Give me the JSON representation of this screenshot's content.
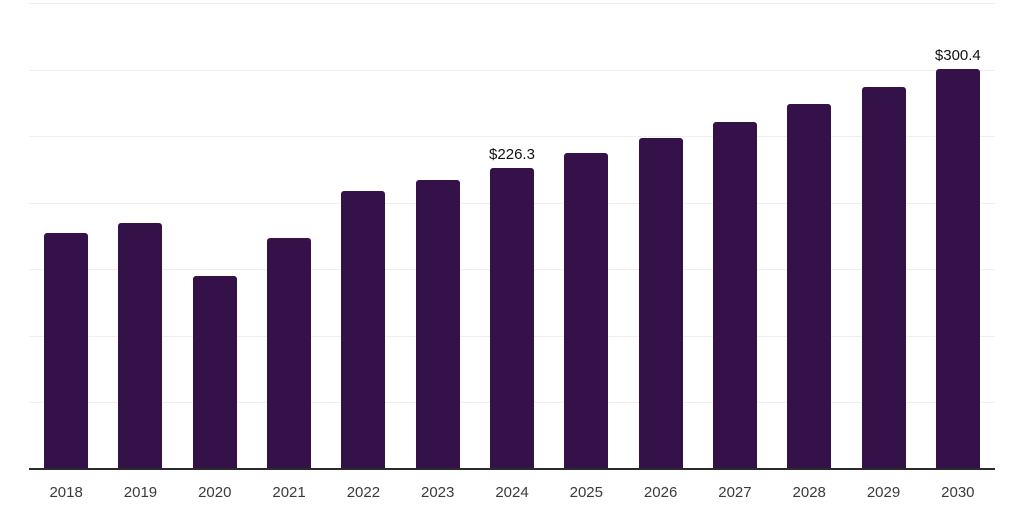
{
  "chart_data": {
    "type": "bar",
    "title": "",
    "xlabel": "",
    "ylabel": "",
    "categories": [
      "2018",
      "2019",
      "2020",
      "2021",
      "2022",
      "2023",
      "2024",
      "2025",
      "2026",
      "2027",
      "2028",
      "2029",
      "2030"
    ],
    "values": [
      177.5,
      184.6,
      145.2,
      173.7,
      208.6,
      216.7,
      226.3,
      237.4,
      248.7,
      260.7,
      273.9,
      286.9,
      300.4
    ],
    "data_labels": {
      "2024": "$226.3",
      "2030": "$300.4"
    },
    "value_prefix": "$",
    "ylim": [
      0,
      350
    ],
    "gridline_step": 50,
    "grid": "horizontal-only",
    "y_axis_tick_labels": "none",
    "legend": "none",
    "colors": {
      "bar": "#341149",
      "gridline": "#efefef",
      "axis": "#2b2b2b",
      "data_label": "#111111",
      "tick_label": "#3a3a3a",
      "background": "#ffffff"
    }
  }
}
